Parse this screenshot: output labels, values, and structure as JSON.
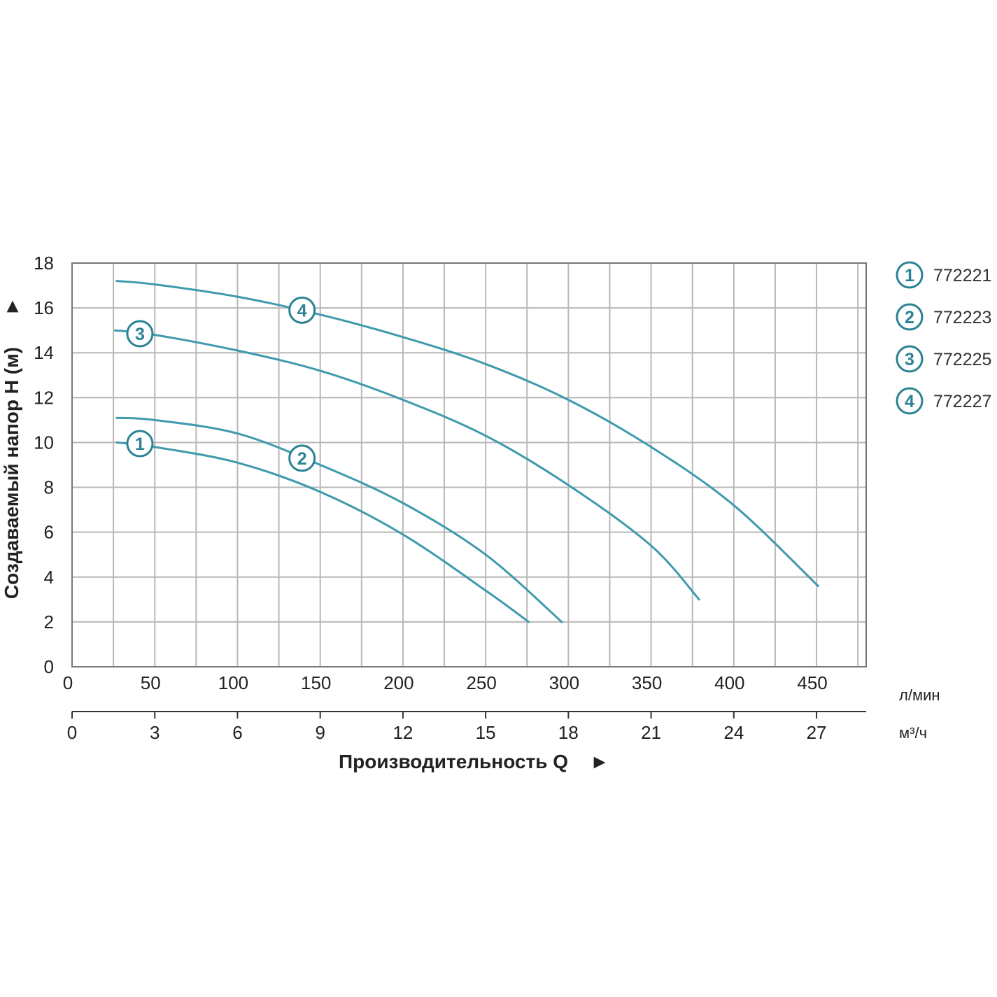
{
  "chart_data": {
    "type": "line",
    "ylabel": "Создаваемый напор H (м)",
    "y_arrow": "►",
    "xlabel": "Производительность Q",
    "x_arrow": "►",
    "ylim": [
      0,
      18
    ],
    "xlim": [
      0,
      480
    ],
    "yticks": [
      "0",
      "2",
      "4",
      "6",
      "8",
      "10",
      "12",
      "14",
      "16",
      "18"
    ],
    "x_primary": {
      "unit": "л/мин",
      "ticks": [
        {
          "value": 0,
          "label": "0"
        },
        {
          "value": 50,
          "label": "50"
        },
        {
          "value": 100,
          "label": "100"
        },
        {
          "value": 150,
          "label": "150"
        },
        {
          "value": 200,
          "label": "200"
        },
        {
          "value": 250,
          "label": "250"
        },
        {
          "value": 300,
          "label": "300"
        },
        {
          "value": 350,
          "label": "350"
        },
        {
          "value": 400,
          "label": "400"
        },
        {
          "value": 450,
          "label": "450"
        }
      ]
    },
    "x_secondary": {
      "unit": "м³/ч",
      "ticks": [
        {
          "value": 0,
          "label": "0"
        },
        {
          "value": 50,
          "label": "3"
        },
        {
          "value": 100,
          "label": "6"
        },
        {
          "value": 150,
          "label": "9"
        },
        {
          "value": 200,
          "label": "12"
        },
        {
          "value": 250,
          "label": "15"
        },
        {
          "value": 300,
          "label": "18"
        },
        {
          "value": 350,
          "label": "21"
        },
        {
          "value": 400,
          "label": "24"
        },
        {
          "value": 450,
          "label": "27"
        }
      ]
    },
    "grid": true,
    "line_color": "#3f9aae",
    "marker_color": "#2b8295",
    "series": [
      {
        "marker": "1",
        "name": "772221",
        "label_at": [
          41,
          9.95
        ],
        "points": [
          [
            27,
            10.0
          ],
          [
            50,
            9.8
          ],
          [
            100,
            9.1
          ],
          [
            150,
            7.8
          ],
          [
            200,
            5.9
          ],
          [
            250,
            3.4
          ],
          [
            276,
            2.0
          ]
        ]
      },
      {
        "marker": "2",
        "name": "772223",
        "label_at": [
          139,
          9.3
        ],
        "points": [
          [
            27,
            11.1
          ],
          [
            50,
            11.0
          ],
          [
            100,
            10.4
          ],
          [
            150,
            9.0
          ],
          [
            200,
            7.3
          ],
          [
            250,
            5.0
          ],
          [
            296,
            2.0
          ]
        ]
      },
      {
        "marker": "3",
        "name": "772225",
        "label_at": [
          41,
          14.85
        ],
        "points": [
          [
            26,
            15.0
          ],
          [
            50,
            14.8
          ],
          [
            100,
            14.1
          ],
          [
            150,
            13.2
          ],
          [
            200,
            11.9
          ],
          [
            250,
            10.3
          ],
          [
            300,
            8.1
          ],
          [
            350,
            5.4
          ],
          [
            379,
            3.0
          ]
        ]
      },
      {
        "marker": "4",
        "name": "772227",
        "label_at": [
          139,
          15.9
        ],
        "points": [
          [
            27,
            17.2
          ],
          [
            50,
            17.05
          ],
          [
            100,
            16.5
          ],
          [
            150,
            15.7
          ],
          [
            200,
            14.7
          ],
          [
            250,
            13.5
          ],
          [
            300,
            11.9
          ],
          [
            350,
            9.8
          ],
          [
            400,
            7.2
          ],
          [
            451,
            3.6
          ]
        ]
      }
    ],
    "legend": [
      {
        "marker": "1",
        "name": "772221"
      },
      {
        "marker": "2",
        "name": "772223"
      },
      {
        "marker": "3",
        "name": "772225"
      },
      {
        "marker": "4",
        "name": "772227"
      }
    ],
    "legend_position": "right"
  }
}
